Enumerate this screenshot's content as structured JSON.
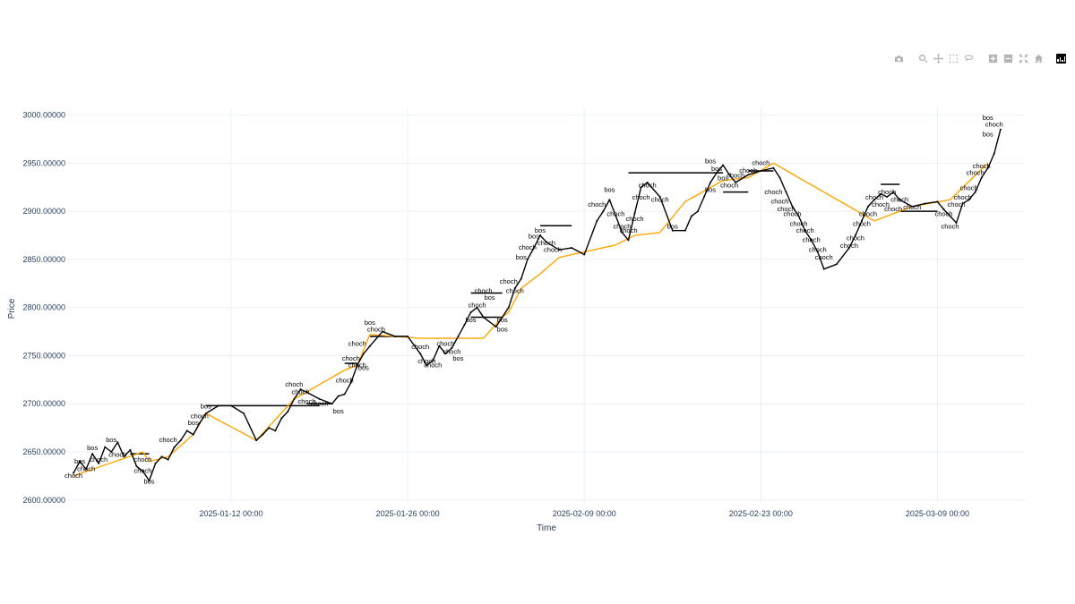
{
  "modebar": {
    "buttons": [
      "camera-icon",
      "zoom-icon",
      "pan-icon",
      "box-select-icon",
      "lasso-icon",
      "zoom-in-icon",
      "zoom-out-icon",
      "autoscale-icon",
      "home-icon",
      "plotly-logo-icon"
    ]
  },
  "chart_data": {
    "type": "line",
    "title": "",
    "xlabel": "Time",
    "ylabel": "Price",
    "x_range": [
      "2024-12-30 00:00",
      "2025-03-16 00:00"
    ],
    "ylim": [
      2597,
      3008
    ],
    "y_ticks": [
      2600,
      2650,
      2700,
      2750,
      2800,
      2850,
      2900,
      2950,
      3000
    ],
    "y_tick_labels": [
      "2600.00000",
      "2650.00000",
      "2700.00000",
      "2750.00000",
      "2800.00000",
      "2850.00000",
      "2900.00000",
      "2950.00000",
      "3000.00000"
    ],
    "x_ticks": [
      "2025-01-12 00:00",
      "2025-01-26 00:00",
      "2025-02-09 00:00",
      "2025-02-23 00:00",
      "2025-03-09 00:00"
    ],
    "x_tick_labels": [
      "2025-01-12 00:00",
      "2025-01-26 00:00",
      "2025-02-09 00:00",
      "2025-02-23 00:00",
      "2025-03-09 00:00"
    ],
    "grid": true,
    "colors": {
      "price": "#000000",
      "structure": "#ffa500",
      "grid": "#ebf0f8",
      "text": "#2a3f5f"
    },
    "price_series": {
      "x": [
        "2024-12-30 12:00",
        "2024-12-31 00:00",
        "2024-12-31 12:00",
        "2025-01-01 00:00",
        "2025-01-01 12:00",
        "2025-01-02 00:00",
        "2025-01-02 12:00",
        "2025-01-03 00:00",
        "2025-01-03 12:00",
        "2025-01-04 00:00",
        "2025-01-04 12:00",
        "2025-01-05 00:00",
        "2025-01-05 12:00",
        "2025-01-06 00:00",
        "2025-01-06 12:00",
        "2025-01-07 00:00",
        "2025-01-07 12:00",
        "2025-01-08 00:00",
        "2025-01-08 12:00",
        "2025-01-09 00:00",
        "2025-01-09 12:00",
        "2025-01-10 00:00",
        "2025-01-11 00:00",
        "2025-01-12 00:00",
        "2025-01-13 00:00",
        "2025-01-14 00:00",
        "2025-01-14 12:00",
        "2025-01-15 00:00",
        "2025-01-15 12:00",
        "2025-01-16 00:00",
        "2025-01-16 12:00",
        "2025-01-17 00:00",
        "2025-01-17 12:00",
        "2025-01-18 00:00",
        "2025-01-19 00:00",
        "2025-01-20 00:00",
        "2025-01-20 12:00",
        "2025-01-21 00:00",
        "2025-01-21 12:00",
        "2025-01-22 00:00",
        "2025-01-22 12:00",
        "2025-01-23 00:00",
        "2025-01-24 00:00",
        "2025-01-25 00:00",
        "2025-01-26 00:00",
        "2025-01-27 00:00",
        "2025-01-27 12:00",
        "2025-01-28 00:00",
        "2025-01-28 12:00",
        "2025-01-29 00:00",
        "2025-01-29 12:00",
        "2025-01-30 00:00",
        "2025-01-30 12:00",
        "2025-01-31 00:00",
        "2025-01-31 12:00",
        "2025-02-01 00:00",
        "2025-02-02 00:00",
        "2025-02-03 00:00",
        "2025-02-03 12:00",
        "2025-02-04 00:00",
        "2025-02-04 12:00",
        "2025-02-05 00:00",
        "2025-02-05 12:00",
        "2025-02-06 00:00",
        "2025-02-07 00:00",
        "2025-02-08 00:00",
        "2025-02-09 00:00",
        "2025-02-10 00:00",
        "2025-02-10 12:00",
        "2025-02-11 00:00",
        "2025-02-11 12:00",
        "2025-02-12 00:00",
        "2025-02-12 12:00",
        "2025-02-13 00:00",
        "2025-02-13 12:00",
        "2025-02-14 00:00",
        "2025-02-15 00:00",
        "2025-02-16 00:00",
        "2025-02-17 00:00",
        "2025-02-17 12:00",
        "2025-02-18 00:00",
        "2025-02-18 12:00",
        "2025-02-19 00:00",
        "2025-02-19 12:00",
        "2025-02-20 00:00",
        "2025-02-20 12:00",
        "2025-02-21 00:00",
        "2025-02-22 00:00",
        "2025-02-23 00:00",
        "2025-02-24 00:00",
        "2025-02-24 12:00",
        "2025-02-25 00:00",
        "2025-02-25 12:00",
        "2025-02-26 00:00",
        "2025-02-26 12:00",
        "2025-02-27 00:00",
        "2025-02-27 12:00",
        "2025-02-28 00:00",
        "2025-03-01 00:00",
        "2025-03-02 00:00",
        "2025-03-02 12:00",
        "2025-03-03 00:00",
        "2025-03-03 12:00",
        "2025-03-04 00:00",
        "2025-03-04 12:00",
        "2025-03-05 00:00",
        "2025-03-05 12:00",
        "2025-03-06 00:00",
        "2025-03-07 00:00",
        "2025-03-08 00:00",
        "2025-03-09 00:00",
        "2025-03-09 12:00",
        "2025-03-10 00:00",
        "2025-03-10 12:00",
        "2025-03-11 00:00",
        "2025-03-11 12:00",
        "2025-03-12 00:00",
        "2025-03-12 12:00",
        "2025-03-13 00:00",
        "2025-03-13 12:00",
        "2025-03-14 00:00"
      ],
      "y": [
        2628,
        2640,
        2632,
        2648,
        2638,
        2655,
        2650,
        2660,
        2645,
        2652,
        2635,
        2630,
        2620,
        2638,
        2645,
        2642,
        2655,
        2662,
        2672,
        2668,
        2680,
        2690,
        2698,
        2698,
        2690,
        2662,
        2668,
        2675,
        2672,
        2685,
        2692,
        2705,
        2715,
        2712,
        2705,
        2700,
        2708,
        2710,
        2722,
        2740,
        2752,
        2760,
        2775,
        2770,
        2770,
        2752,
        2740,
        2745,
        2760,
        2752,
        2758,
        2770,
        2782,
        2795,
        2800,
        2790,
        2780,
        2800,
        2820,
        2830,
        2850,
        2862,
        2875,
        2868,
        2860,
        2862,
        2855,
        2890,
        2900,
        2912,
        2895,
        2878,
        2870,
        2898,
        2925,
        2930,
        2915,
        2880,
        2880,
        2895,
        2900,
        2915,
        2930,
        2940,
        2948,
        2938,
        2930,
        2938,
        2942,
        2945,
        2935,
        2920,
        2905,
        2895,
        2880,
        2870,
        2858,
        2840,
        2845,
        2862,
        2875,
        2890,
        2905,
        2912,
        2918,
        2915,
        2920,
        2912,
        2905,
        2908,
        2910,
        2902,
        2895,
        2888,
        2908,
        2912,
        2920,
        2935,
        2945,
        2960,
        2985
      ]
    },
    "structure_series": {
      "x": [
        "2024-12-30 12:00",
        "2025-01-05 00:00",
        "2025-01-05 12:00",
        "2025-01-07 00:00",
        "2025-01-09 00:00",
        "2025-01-10 00:00",
        "2025-01-14 00:00",
        "2025-01-17 00:00",
        "2025-01-21 00:00",
        "2025-01-22 00:00",
        "2025-01-23 00:00",
        "2025-01-27 00:00",
        "2025-02-01 00:00",
        "2025-02-02 12:00",
        "2025-02-03 00:00",
        "2025-02-04 00:00",
        "2025-02-05 12:00",
        "2025-02-07 00:00",
        "2025-02-08 00:00",
        "2025-02-11 12:00",
        "2025-02-13 00:00",
        "2025-02-15 00:00",
        "2025-02-17 00:00",
        "2025-02-20 00:00",
        "2025-02-22 00:00",
        "2025-02-24 00:00",
        "2025-03-04 00:00",
        "2025-03-07 00:00",
        "2025-03-10 00:00",
        "2025-03-13 00:00"
      ],
      "y": [
        2625,
        2650,
        2640,
        2645,
        2668,
        2690,
        2662,
        2705,
        2735,
        2740,
        2772,
        2768,
        2768,
        2790,
        2795,
        2820,
        2835,
        2852,
        2855,
        2865,
        2875,
        2878,
        2910,
        2932,
        2935,
        2950,
        2890,
        2905,
        2912,
        2950
      ]
    },
    "levels": [
      {
        "x0": "2025-01-04 00:00",
        "x1": "2025-01-05 12:00",
        "y": 2648
      },
      {
        "x0": "2025-01-10 00:00",
        "x1": "2025-01-19 00:00",
        "y": 2698
      },
      {
        "x0": "2025-01-18 00:00",
        "x1": "2025-01-20 00:00",
        "y": 2700
      },
      {
        "x0": "2025-01-21 00:00",
        "x1": "2025-01-22 00:00",
        "y": 2742
      },
      {
        "x0": "2025-01-23 00:00",
        "x1": "2025-01-26 00:00",
        "y": 2770
      },
      {
        "x0": "2025-01-31 00:00",
        "x1": "2025-02-02 12:00",
        "y": 2815
      },
      {
        "x0": "2025-01-31 00:00",
        "x1": "2025-02-02 12:00",
        "y": 2790
      },
      {
        "x0": "2025-02-05 12:00",
        "x1": "2025-02-08 00:00",
        "y": 2885
      },
      {
        "x0": "2025-02-12 12:00",
        "x1": "2025-02-20 00:00",
        "y": 2940
      },
      {
        "x0": "2025-02-20 00:00",
        "x1": "2025-02-22 00:00",
        "y": 2920
      },
      {
        "x0": "2025-02-22 00:00",
        "x1": "2025-02-24 00:00",
        "y": 2942
      },
      {
        "x0": "2025-03-04 12:00",
        "x1": "2025-03-06 00:00",
        "y": 2928
      },
      {
        "x0": "2025-03-06 00:00",
        "x1": "2025-03-09 00:00",
        "y": 2900
      }
    ],
    "annotations": [
      {
        "x": "2024-12-30 12:00",
        "y": 2623,
        "text": "choch"
      },
      {
        "x": "2024-12-31 00:00",
        "y": 2638,
        "text": "bos"
      },
      {
        "x": "2025-01-01 00:00",
        "y": 2652,
        "text": "bos"
      },
      {
        "x": "2025-01-01 12:00",
        "y": 2640,
        "text": "choch"
      },
      {
        "x": "2024-12-31 12:00",
        "y": 2630,
        "text": "choch"
      },
      {
        "x": "2025-01-02 12:00",
        "y": 2660,
        "text": "bos"
      },
      {
        "x": "2025-01-03 00:00",
        "y": 2645,
        "text": "choch"
      },
      {
        "x": "2025-01-05 00:00",
        "y": 2640,
        "text": "choch"
      },
      {
        "x": "2025-01-05 12:00",
        "y": 2617,
        "text": "bos"
      },
      {
        "x": "2025-01-05 00:00",
        "y": 2628,
        "text": "choch"
      },
      {
        "x": "2025-01-07 00:00",
        "y": 2660,
        "text": "choch"
      },
      {
        "x": "2025-01-09 00:00",
        "y": 2678,
        "text": "bos"
      },
      {
        "x": "2025-01-09 12:00",
        "y": 2685,
        "text": "choch"
      },
      {
        "x": "2025-01-10 00:00",
        "y": 2695,
        "text": "bos"
      },
      {
        "x": "2025-01-17 00:00",
        "y": 2718,
        "text": "choch"
      },
      {
        "x": "2025-01-17 12:00",
        "y": 2710,
        "text": "choch"
      },
      {
        "x": "2025-01-18 00:00",
        "y": 2700,
        "text": "choch"
      },
      {
        "x": "2025-01-19 00:00",
        "y": 2698,
        "text": "choch"
      },
      {
        "x": "2025-01-20 12:00",
        "y": 2690,
        "text": "bos"
      },
      {
        "x": "2025-01-21 00:00",
        "y": 2722,
        "text": "choch"
      },
      {
        "x": "2025-01-21 12:00",
        "y": 2745,
        "text": "choch"
      },
      {
        "x": "2025-01-22 00:00",
        "y": 2760,
        "text": "choch"
      },
      {
        "x": "2025-01-22 00:00",
        "y": 2738,
        "text": "choch"
      },
      {
        "x": "2025-01-22 12:00",
        "y": 2735,
        "text": "bos"
      },
      {
        "x": "2025-01-23 00:00",
        "y": 2782,
        "text": "bos"
      },
      {
        "x": "2025-01-23 12:00",
        "y": 2775,
        "text": "choch"
      },
      {
        "x": "2025-01-27 00:00",
        "y": 2757,
        "text": "choch"
      },
      {
        "x": "2025-01-27 12:00",
        "y": 2742,
        "text": "choch"
      },
      {
        "x": "2025-01-28 00:00",
        "y": 2738,
        "text": "choch"
      },
      {
        "x": "2025-01-29 00:00",
        "y": 2760,
        "text": "choch"
      },
      {
        "x": "2025-01-29 12:00",
        "y": 2752,
        "text": "choch"
      },
      {
        "x": "2025-01-30 00:00",
        "y": 2745,
        "text": "bos"
      },
      {
        "x": "2025-01-31 00:00",
        "y": 2785,
        "text": "bos"
      },
      {
        "x": "2025-01-31 12:00",
        "y": 2800,
        "text": "choch"
      },
      {
        "x": "2025-02-01 00:00",
        "y": 2815,
        "text": "choch"
      },
      {
        "x": "2025-02-01 12:00",
        "y": 2808,
        "text": "bos"
      },
      {
        "x": "2025-02-02 12:00",
        "y": 2785,
        "text": "bos"
      },
      {
        "x": "2025-02-02 12:00",
        "y": 2775,
        "text": "bos"
      },
      {
        "x": "2025-02-03 00:00",
        "y": 2825,
        "text": "choch"
      },
      {
        "x": "2025-02-03 12:00",
        "y": 2815,
        "text": "choch"
      },
      {
        "x": "2025-02-04 00:00",
        "y": 2850,
        "text": "bos"
      },
      {
        "x": "2025-02-04 12:00",
        "y": 2860,
        "text": "choch"
      },
      {
        "x": "2025-02-05 00:00",
        "y": 2872,
        "text": "bos"
      },
      {
        "x": "2025-02-05 12:00",
        "y": 2878,
        "text": "bos"
      },
      {
        "x": "2025-02-06 00:00",
        "y": 2865,
        "text": "choch"
      },
      {
        "x": "2025-02-06 12:00",
        "y": 2858,
        "text": "choch"
      },
      {
        "x": "2025-02-10 00:00",
        "y": 2905,
        "text": "choch"
      },
      {
        "x": "2025-02-11 00:00",
        "y": 2920,
        "text": "bos"
      },
      {
        "x": "2025-02-11 12:00",
        "y": 2895,
        "text": "choch"
      },
      {
        "x": "2025-02-12 00:00",
        "y": 2882,
        "text": "choch"
      },
      {
        "x": "2025-02-12 12:00",
        "y": 2878,
        "text": "choch"
      },
      {
        "x": "2025-02-13 00:00",
        "y": 2890,
        "text": "choch"
      },
      {
        "x": "2025-02-13 12:00",
        "y": 2912,
        "text": "choch"
      },
      {
        "x": "2025-02-14 00:00",
        "y": 2925,
        "text": "choch"
      },
      {
        "x": "2025-02-15 00:00",
        "y": 2910,
        "text": "choch"
      },
      {
        "x": "2025-02-16 00:00",
        "y": 2882,
        "text": "bos"
      },
      {
        "x": "2025-02-19 00:00",
        "y": 2950,
        "text": "bos"
      },
      {
        "x": "2025-02-19 12:00",
        "y": 2942,
        "text": "bos"
      },
      {
        "x": "2025-02-20 00:00",
        "y": 2932,
        "text": "bos"
      },
      {
        "x": "2025-02-20 12:00",
        "y": 2925,
        "text": "choch"
      },
      {
        "x": "2025-02-19 00:00",
        "y": 2920,
        "text": "bos"
      },
      {
        "x": "2025-02-21 00:00",
        "y": 2935,
        "text": "choch"
      },
      {
        "x": "2025-02-22 00:00",
        "y": 2940,
        "text": "choch"
      },
      {
        "x": "2025-02-23 00:00",
        "y": 2948,
        "text": "choch"
      },
      {
        "x": "2025-02-24 00:00",
        "y": 2918,
        "text": "choch"
      },
      {
        "x": "2025-02-24 12:00",
        "y": 2908,
        "text": "choch"
      },
      {
        "x": "2025-02-25 00:00",
        "y": 2900,
        "text": "choch"
      },
      {
        "x": "2025-02-25 12:00",
        "y": 2895,
        "text": "choch"
      },
      {
        "x": "2025-02-26 00:00",
        "y": 2885,
        "text": "choch"
      },
      {
        "x": "2025-02-26 12:00",
        "y": 2878,
        "text": "choch"
      },
      {
        "x": "2025-02-27 00:00",
        "y": 2868,
        "text": "choch"
      },
      {
        "x": "2025-02-27 12:00",
        "y": 2858,
        "text": "choch"
      },
      {
        "x": "2025-02-28 00:00",
        "y": 2850,
        "text": "choch"
      },
      {
        "x": "2025-03-02 00:00",
        "y": 2862,
        "text": "choch"
      },
      {
        "x": "2025-03-02 12:00",
        "y": 2870,
        "text": "choch"
      },
      {
        "x": "2025-03-03 00:00",
        "y": 2885,
        "text": "choch"
      },
      {
        "x": "2025-03-03 12:00",
        "y": 2895,
        "text": "choch"
      },
      {
        "x": "2025-03-04 00:00",
        "y": 2912,
        "text": "choch"
      },
      {
        "x": "2025-03-04 12:00",
        "y": 2905,
        "text": "choch"
      },
      {
        "x": "2025-03-05 00:00",
        "y": 2918,
        "text": "choch"
      },
      {
        "x": "2025-03-05 12:00",
        "y": 2900,
        "text": "choch"
      },
      {
        "x": "2025-03-06 00:00",
        "y": 2910,
        "text": "choch"
      },
      {
        "x": "2025-03-07 00:00",
        "y": 2902,
        "text": "choch"
      },
      {
        "x": "2025-03-09 12:00",
        "y": 2895,
        "text": "choch"
      },
      {
        "x": "2025-03-10 00:00",
        "y": 2882,
        "text": "choch"
      },
      {
        "x": "2025-03-10 12:00",
        "y": 2905,
        "text": "choch"
      },
      {
        "x": "2025-03-11 00:00",
        "y": 2912,
        "text": "choch"
      },
      {
        "x": "2025-03-11 12:00",
        "y": 2922,
        "text": "choch"
      },
      {
        "x": "2025-03-12 00:00",
        "y": 2938,
        "text": "choch"
      },
      {
        "x": "2025-03-12 12:00",
        "y": 2945,
        "text": "choch"
      },
      {
        "x": "2025-03-13 00:00",
        "y": 2995,
        "text": "bos"
      },
      {
        "x": "2025-03-13 12:00",
        "y": 2988,
        "text": "choch"
      },
      {
        "x": "2025-03-13 00:00",
        "y": 2978,
        "text": "bos"
      }
    ]
  }
}
